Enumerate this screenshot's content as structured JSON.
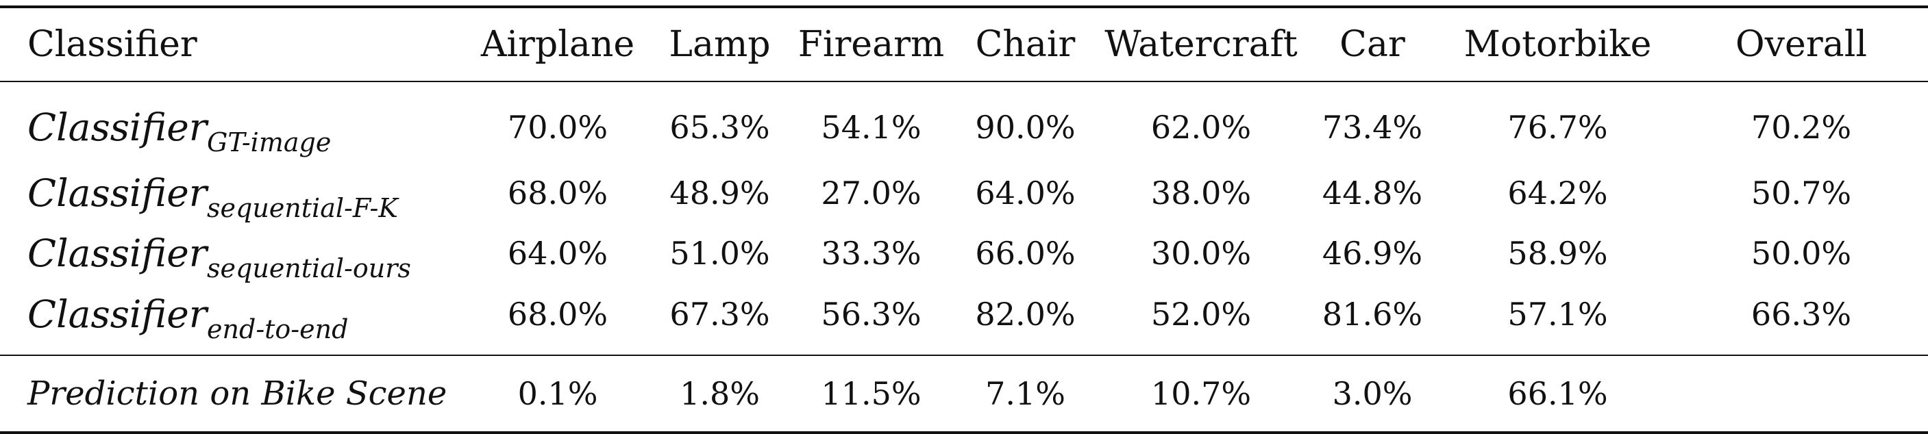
{
  "table": {
    "header": {
      "first": "Classifier",
      "columns": [
        "Airplane",
        "Lamp",
        "Firearm",
        "Chair",
        "Watercraft",
        "Car",
        "Motorbike",
        "Overall"
      ]
    },
    "rows": [
      {
        "name": "Classifier",
        "sub": "GT-image",
        "values": [
          "70.0%",
          "65.3%",
          "54.1%",
          "90.0%",
          "62.0%",
          "73.4%",
          "76.7%",
          "70.2%"
        ]
      },
      {
        "name": "Classifier",
        "sub": "sequential-F-K",
        "values": [
          "68.0%",
          "48.9%",
          "27.0%",
          "64.0%",
          "38.0%",
          "44.8%",
          "64.2%",
          "50.7%"
        ]
      },
      {
        "name": "Classifier",
        "sub": "sequential-ours",
        "values": [
          "64.0%",
          "51.0%",
          "33.3%",
          "66.0%",
          "30.0%",
          "46.9%",
          "58.9%",
          "50.0%"
        ]
      },
      {
        "name": "Classifier",
        "sub": "end-to-end",
        "values": [
          "68.0%",
          "67.3%",
          "56.3%",
          "82.0%",
          "52.0%",
          "81.6%",
          "57.1%",
          "66.3%"
        ]
      }
    ],
    "prediction_row": {
      "name": "Prediction on Bike Scene",
      "values": [
        "0.1%",
        "1.8%",
        "11.5%",
        "7.1%",
        "10.7%",
        "3.0%",
        "66.1%",
        ""
      ]
    }
  }
}
